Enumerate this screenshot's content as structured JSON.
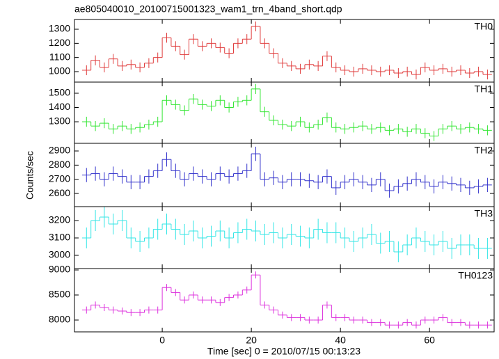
{
  "title": "ae805040010_20100715001323_wam1_trn_4band_short.qdp",
  "y_label": "Counts/sec",
  "x_label": "Time [sec] 0 = 2010/07/15 00:13:23",
  "chart_data": [
    {
      "type": "step",
      "label": "TH0",
      "color": "#e03c3c",
      "x": [
        -17,
        -15,
        -13,
        -11,
        -9,
        -7,
        -5,
        -3,
        -1,
        1,
        3,
        5,
        7,
        9,
        11,
        13,
        15,
        17,
        19,
        21,
        23,
        25,
        27,
        29,
        31,
        33,
        35,
        37,
        39,
        41,
        43,
        45,
        47,
        49,
        51,
        53,
        55,
        57,
        59,
        61,
        63,
        65,
        67,
        69,
        71,
        73
      ],
      "values": [
        1010,
        1080,
        1030,
        1090,
        1040,
        1050,
        1030,
        1060,
        1100,
        1240,
        1180,
        1120,
        1230,
        1180,
        1200,
        1170,
        1130,
        1200,
        1230,
        1320,
        1200,
        1130,
        1060,
        1040,
        1020,
        1050,
        1040,
        1110,
        1030,
        1010,
        1000,
        1020,
        1010,
        1000,
        1010,
        990,
        1000,
        980,
        1030,
        1010,
        1020,
        1000,
        1010,
        990,
        1000,
        980
      ],
      "errors": [
        35,
        35,
        35,
        35,
        35,
        35,
        35,
        35,
        35,
        35,
        35,
        35,
        35,
        35,
        35,
        35,
        35,
        35,
        35,
        35,
        35,
        35,
        35,
        35,
        35,
        35,
        35,
        35,
        35,
        35,
        35,
        35,
        35,
        35,
        35,
        35,
        35,
        35,
        35,
        35,
        35,
        35,
        35,
        35,
        35,
        35
      ],
      "xlim": [
        -19.7,
        74.5
      ],
      "xticks": [
        0,
        20,
        40,
        60
      ],
      "ylim": [
        926,
        1369
      ],
      "yticks": [
        1000,
        1100,
        1200,
        1300
      ]
    },
    {
      "type": "step",
      "label": "TH1",
      "color": "#33e633",
      "x": [
        -17,
        -15,
        -13,
        -11,
        -9,
        -7,
        -5,
        -3,
        -1,
        1,
        3,
        5,
        7,
        9,
        11,
        13,
        15,
        17,
        19,
        21,
        23,
        25,
        27,
        29,
        31,
        33,
        35,
        37,
        39,
        41,
        43,
        45,
        47,
        49,
        51,
        53,
        55,
        57,
        59,
        61,
        63,
        65,
        67,
        69,
        71,
        73
      ],
      "values": [
        1300,
        1270,
        1290,
        1250,
        1270,
        1250,
        1260,
        1280,
        1300,
        1450,
        1420,
        1380,
        1460,
        1420,
        1410,
        1450,
        1400,
        1440,
        1450,
        1530,
        1370,
        1310,
        1280,
        1270,
        1300,
        1260,
        1280,
        1330,
        1260,
        1250,
        1260,
        1270,
        1250,
        1260,
        1240,
        1250,
        1230,
        1250,
        1220,
        1200,
        1250,
        1270,
        1250,
        1260,
        1250,
        1240
      ],
      "errors": [
        35,
        35,
        35,
        35,
        35,
        35,
        35,
        35,
        35,
        35,
        35,
        35,
        35,
        35,
        35,
        35,
        35,
        35,
        35,
        35,
        35,
        35,
        35,
        35,
        35,
        35,
        35,
        35,
        35,
        35,
        35,
        35,
        35,
        35,
        35,
        35,
        35,
        35,
        35,
        35,
        35,
        35,
        35,
        35,
        35,
        35
      ],
      "xlim": [
        -19.7,
        74.5
      ],
      "xticks": [
        0,
        20,
        40,
        60
      ],
      "ylim": [
        1149,
        1578
      ],
      "yticks": [
        1300,
        1400,
        1500
      ]
    },
    {
      "type": "step",
      "label": "TH2",
      "color": "#3333cc",
      "x": [
        -17,
        -15,
        -13,
        -11,
        -9,
        -7,
        -5,
        -3,
        -1,
        1,
        3,
        5,
        7,
        9,
        11,
        13,
        15,
        17,
        19,
        21,
        23,
        25,
        27,
        29,
        31,
        33,
        35,
        37,
        39,
        41,
        43,
        45,
        47,
        49,
        51,
        53,
        55,
        57,
        59,
        61,
        63,
        65,
        67,
        69,
        71,
        73
      ],
      "values": [
        2730,
        2740,
        2700,
        2740,
        2720,
        2680,
        2680,
        2720,
        2760,
        2840,
        2760,
        2700,
        2740,
        2720,
        2700,
        2740,
        2720,
        2740,
        2760,
        2880,
        2700,
        2710,
        2680,
        2700,
        2700,
        2690,
        2680,
        2720,
        2640,
        2680,
        2700,
        2680,
        2660,
        2700,
        2620,
        2650,
        2670,
        2700,
        2680,
        2650,
        2680,
        2670,
        2660,
        2640,
        2650,
        2660
      ],
      "errors": [
        50,
        50,
        50,
        50,
        50,
        50,
        50,
        50,
        50,
        50,
        50,
        50,
        50,
        50,
        50,
        50,
        50,
        50,
        50,
        50,
        50,
        50,
        50,
        50,
        50,
        50,
        50,
        50,
        50,
        50,
        50,
        50,
        50,
        50,
        50,
        50,
        50,
        50,
        50,
        50,
        50,
        50,
        50,
        50,
        50,
        50
      ],
      "xlim": [
        -19.7,
        74.5
      ],
      "xticks": [
        0,
        20,
        40,
        60
      ],
      "ylim": [
        2507,
        2954
      ],
      "yticks": [
        2600,
        2700,
        2800,
        2900
      ]
    },
    {
      "type": "step",
      "label": "TH3",
      "color": "#33e6e6",
      "x": [
        -17,
        -15,
        -13,
        -11,
        -9,
        -7,
        -5,
        -3,
        -1,
        1,
        3,
        5,
        7,
        9,
        11,
        13,
        15,
        17,
        19,
        21,
        23,
        25,
        27,
        29,
        31,
        33,
        35,
        37,
        39,
        41,
        43,
        45,
        47,
        49,
        51,
        53,
        55,
        57,
        59,
        61,
        63,
        65,
        67,
        69,
        71,
        73
      ],
      "values": [
        3100,
        3200,
        3220,
        3180,
        3200,
        3100,
        3080,
        3100,
        3150,
        3180,
        3150,
        3120,
        3140,
        3100,
        3110,
        3140,
        3100,
        3130,
        3150,
        3140,
        3120,
        3130,
        3100,
        3120,
        3110,
        3100,
        3150,
        3130,
        3130,
        3100,
        3080,
        3100,
        3120,
        3070,
        3080,
        3020,
        3060,
        3100,
        3080,
        3060,
        3080,
        3040,
        3060,
        3060,
        3040,
        3040
      ],
      "errors": [
        60,
        60,
        60,
        60,
        60,
        60,
        60,
        60,
        60,
        60,
        60,
        60,
        60,
        60,
        60,
        60,
        60,
        60,
        60,
        60,
        60,
        60,
        60,
        60,
        60,
        60,
        60,
        60,
        60,
        60,
        60,
        60,
        60,
        60,
        60,
        60,
        60,
        60,
        60,
        60,
        60,
        60,
        60,
        60,
        60,
        60
      ],
      "xlim": [
        -19.7,
        74.5
      ],
      "xticks": [
        0,
        20,
        40,
        60
      ],
      "ylim": [
        2924,
        3280
      ],
      "yticks": [
        3000,
        3100,
        3200
      ]
    },
    {
      "type": "step",
      "label": "TH0123",
      "color": "#dd33dd",
      "x": [
        -17,
        -15,
        -13,
        -11,
        -9,
        -7,
        -5,
        -3,
        -1,
        1,
        3,
        5,
        7,
        9,
        11,
        13,
        15,
        17,
        19,
        21,
        23,
        25,
        27,
        29,
        31,
        33,
        35,
        37,
        39,
        41,
        43,
        45,
        47,
        49,
        51,
        53,
        55,
        57,
        59,
        61,
        63,
        65,
        67,
        69,
        71,
        73
      ],
      "values": [
        8200,
        8300,
        8250,
        8200,
        8180,
        8150,
        8150,
        8200,
        8200,
        8650,
        8550,
        8400,
        8500,
        8400,
        8400,
        8350,
        8450,
        8500,
        8600,
        8900,
        8300,
        8200,
        8100,
        8050,
        8050,
        8000,
        8000,
        8300,
        8050,
        8050,
        8000,
        8000,
        7950,
        7950,
        7900,
        7900,
        7950,
        7900,
        8000,
        8000,
        8050,
        7950,
        7950,
        7900,
        7900,
        7900
      ],
      "errors": [
        70,
        70,
        70,
        70,
        70,
        70,
        70,
        70,
        70,
        70,
        70,
        70,
        70,
        70,
        70,
        70,
        70,
        70,
        70,
        70,
        70,
        70,
        70,
        70,
        70,
        70,
        70,
        70,
        70,
        70,
        70,
        70,
        70,
        70,
        70,
        70,
        70,
        70,
        70,
        70,
        70,
        70,
        70,
        70,
        70,
        70
      ],
      "xlim": [
        -19.7,
        74.5
      ],
      "xticks": [
        0,
        20,
        40,
        60
      ],
      "ylim": [
        7764,
        9028
      ],
      "yticks": [
        8000,
        8500,
        9000
      ]
    }
  ]
}
